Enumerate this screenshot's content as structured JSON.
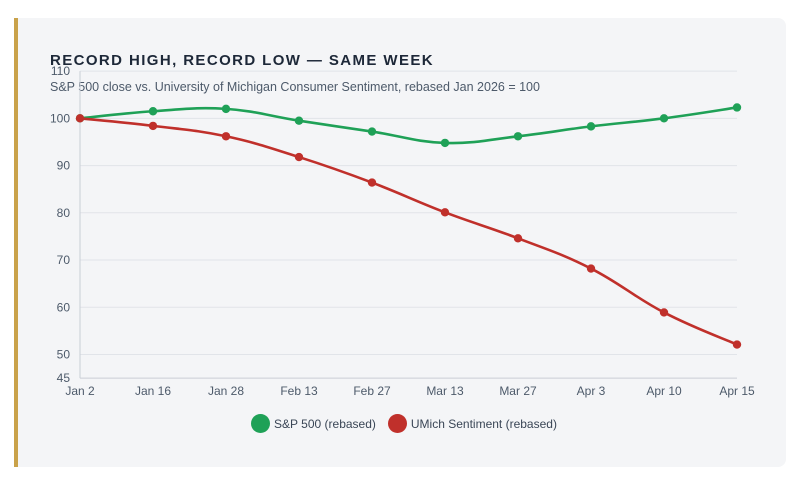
{
  "header": {
    "title": "RECORD HIGH, RECORD LOW — SAME WEEK",
    "subtitle": "S&P 500 close vs. University of Michigan Consumer Sentiment, rebased Jan 2026 = 100"
  },
  "colors": {
    "sp500": "#1fa157",
    "umich": "#c0302b",
    "accent_bar": "#c9a24a"
  },
  "chart_data": {
    "type": "line",
    "categories": [
      "Jan 2",
      "Jan 16",
      "Jan 28",
      "Feb 13",
      "Feb 27",
      "Mar 13",
      "Mar 27",
      "Apr 3",
      "Apr 10",
      "Apr 15"
    ],
    "series": [
      {
        "name": "S&P 500 (rebased)",
        "color": "#1fa157",
        "values": [
          100,
          101.5,
          102,
          99.5,
          97.2,
          94.8,
          96.2,
          98.3,
          100,
          102.3
        ]
      },
      {
        "name": "UMich Sentiment (rebased)",
        "color": "#c0302b",
        "values": [
          100,
          98.4,
          96.2,
          91.8,
          86.4,
          80.1,
          74.6,
          68.2,
          58.9,
          52.1
        ]
      }
    ],
    "yticks": [
      45,
      50,
      60,
      70,
      80,
      90,
      100,
      110
    ],
    "ylim": [
      45,
      110
    ],
    "grid": true,
    "legend_position": "bottom-center"
  }
}
